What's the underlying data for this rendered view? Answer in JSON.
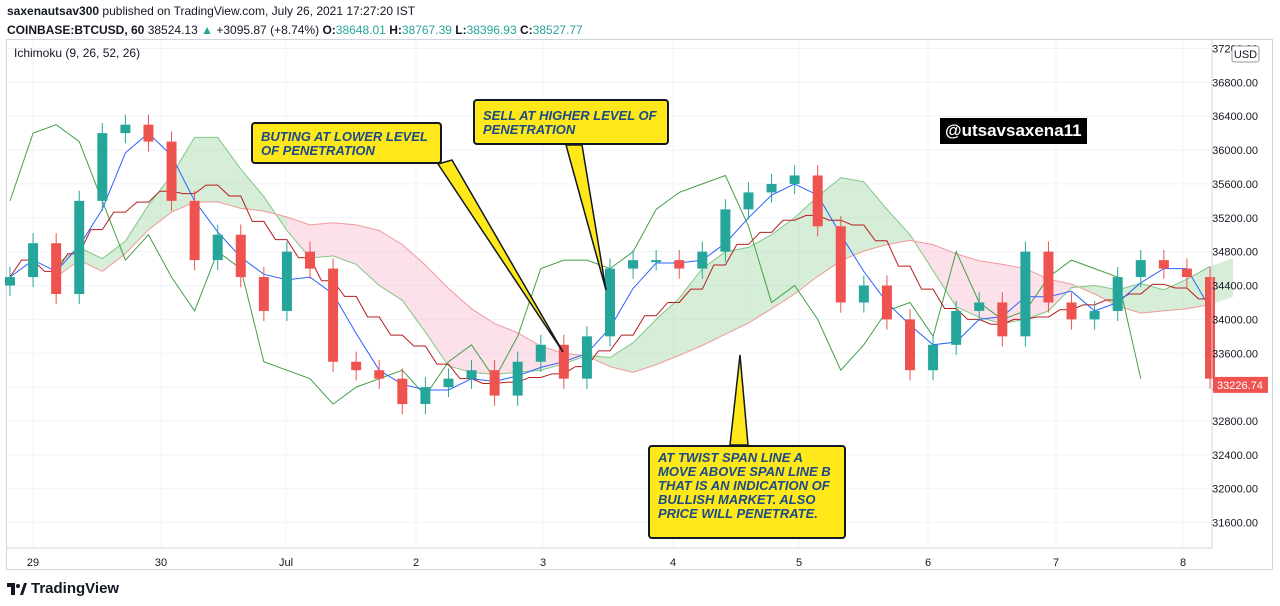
{
  "header": {
    "publisher": "saxenautsav300",
    "published_text": "published on TradingView.com, July 26, 2021 17:27:20 IST",
    "symbol": "COINBASE:BTCUSD, 60",
    "last": "38524.13",
    "change": "+3095.87 (+8.74%)",
    "o_label": "O:",
    "o_value": "38648.01",
    "h_label": "H:",
    "h_value": "38767.39",
    "l_label": "L:",
    "l_value": "38396.93",
    "c_label": "C:",
    "c_value": "38527.77"
  },
  "indicator": {
    "label": "Ichimoku (9, 26, 52, 26)"
  },
  "watermark": "@utsavsaxena11",
  "annotations": {
    "buying": "BUTING AT LOWER LEVEL OF PENETRATION",
    "selling": "SELL AT HIGHER LEVEL OF PENETRATION",
    "twist": "AT TWIST SPAN LINE A MOVE ABOVE SPAN LINE B THAT IS AN INDICATION OF BULLISH MARKET. ALSO PRICE WILL PENETRATE."
  },
  "footer": {
    "brand": "TradingView"
  },
  "colors": {
    "up": "#26a69a",
    "down": "#ef5350",
    "tenkan": "#2962ff",
    "kijun": "#b71c1c",
    "chikou": "#43a047",
    "cloud_bull": "#a5d6a7",
    "cloud_bear": "#f8bbd0",
    "price_tag": "#ef5350"
  },
  "chart_data": {
    "type": "candlestick",
    "title": "",
    "xlabel": "",
    "ylabel": "",
    "y_unit": "USD",
    "ylim": [
      31300,
      37300
    ],
    "x_ticks": [
      "29",
      "30",
      "Jul",
      "2",
      "3",
      "4",
      "5",
      "6",
      "7",
      "8"
    ],
    "y_ticks": [
      37200,
      36800,
      36400,
      36000,
      35600,
      35200,
      34800,
      34400,
      34000,
      33600,
      33200,
      32800,
      32400,
      32000,
      31600
    ],
    "y_top_tick_label": "37200.00",
    "last_price": 33226.74,
    "last_price_label": "33226.74",
    "grid": true,
    "series": [
      {
        "kind": "close",
        "note": "approx close path across 29 Jun – 8 Jul",
        "values": [
          34500,
          34900,
          34300,
          35400,
          36200,
          36300,
          36100,
          35400,
          34700,
          35000,
          34500,
          34100,
          34800,
          34600,
          33500,
          33400,
          33300,
          33000,
          33200,
          33300,
          33400,
          33100,
          33500,
          33700,
          33300,
          33800,
          34600,
          34700,
          34700,
          34600,
          34800,
          35300,
          35500,
          35600,
          35700,
          35100,
          34200,
          34400,
          34000,
          33400,
          33700,
          34100,
          34200,
          33800,
          34800,
          34200,
          34000,
          34100,
          34500,
          34700,
          34600,
          34500,
          33300
        ]
      }
    ]
  }
}
